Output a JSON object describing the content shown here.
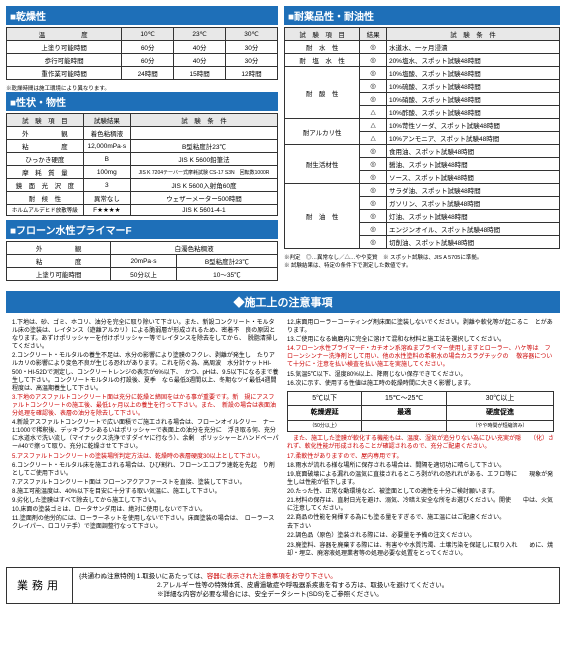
{
  "sections": {
    "s1_title": "■乾燥性",
    "s2_title": "■性状・物性",
    "s3_title": "■フローン水性プライマーF",
    "s4_title": "■耐薬品性・耐油性"
  },
  "table1": {
    "header": [
      "温　　　　度",
      "10℃",
      "23℃",
      "30℃"
    ],
    "rows": [
      [
        "上塗り可能時間",
        "60分",
        "40分",
        "30分"
      ],
      [
        "歩行可能時間",
        "60分",
        "40分",
        "30分"
      ],
      [
        "重作業可能時間",
        "24時間",
        "15時間",
        "12時間"
      ]
    ],
    "foot": "※乾燥時間は施工環境により異なります。"
  },
  "table2": {
    "header": [
      "試　験　項　目",
      "試験結果",
      "試　験　条　件"
    ],
    "rows": [
      [
        "外　　　　　観",
        "着色粘稠液",
        ""
      ],
      [
        "粘　　　　　度",
        "12,000mPa·s",
        "B型粘度計23℃"
      ],
      [
        "ひっかき硬度",
        "B",
        "JIS K 5600鉛筆法"
      ],
      [
        "摩　耗　質　量",
        "100mg",
        "JIS K 7204テーバー式摩耗試験 CS-17 S3N　回転数1000R"
      ],
      [
        "鏡　面　光　沢　度",
        "3",
        "JIS K 5600入射角60度"
      ],
      [
        "耐　候　性",
        "異常なし",
        "ウェザーメーター500時間"
      ],
      [
        "ホルムアルデヒド放散等級",
        "F★★★★",
        "JIS K 5601-4-1"
      ]
    ]
  },
  "table3": {
    "rows": [
      [
        "外　　　　　観",
        "白濁色粘稠液",
        ""
      ],
      [
        "粘　　　　　度",
        "20mPa·s",
        "B型粘度計23℃"
      ],
      [
        "上塗り可能時間",
        "50分以上",
        "10～35℃"
      ]
    ]
  },
  "table4": {
    "header": [
      "試　験　項　目",
      "結果",
      "試　験　条　件"
    ],
    "rows": [
      [
        "耐　水　性",
        "◎",
        "水道水、一ヶ月浸漬"
      ],
      [
        "耐　塩　水　性",
        "◎",
        "20%塩水、スポット試験48時間"
      ],
      [
        "耐　酸　性",
        "◎",
        "10%塩酸、スポット試験48時間"
      ],
      [
        "",
        "◎",
        "10%硫酸、スポット試験48時間"
      ],
      [
        "",
        "◎",
        "10%硝酸、スポット試験48時間"
      ],
      [
        "",
        "△",
        "10%酢酸、スポット試験48時間"
      ],
      [
        "耐アルカリ性",
        "△",
        "10%苛性ソーダ、スポット試験48時間"
      ],
      [
        "",
        "△",
        "10%アンモニア、スポット試験48時間"
      ],
      [
        "耐生活材性",
        "◎",
        "食用油、スポット試験48時間"
      ],
      [
        "",
        "◎",
        "醤油、スポット試験48時間"
      ],
      [
        "",
        "◎",
        "ソース、スポット試験48時間"
      ],
      [
        "耐　油　性",
        "◎",
        "サラダ油、スポット試験48時間"
      ],
      [
        "",
        "◎",
        "ガソリン、スポット試験48時間"
      ],
      [
        "",
        "◎",
        "灯油、スポット試験48時間"
      ],
      [
        "",
        "◎",
        "エンジンオイル、スポット試験48時間"
      ],
      [
        "",
        "◎",
        "切削油、スポット試験48時間"
      ]
    ],
    "foot": "※判定　◎…異常なし／△…やや変質　※ スポット試験は、JIS A 5705に準拠。\n※ 試験結果は、特定の条件下で測定した数値です。"
  },
  "notes_title": "◆施工上の注意事項",
  "notes_left": [
    "1.下地は、砂、ゴミ、ホコリ、油分を完全に取り除いて下さい。また、新設コンクリート・モルタ　ル床の塗装は、レイタンス（遊離アルカリ）による脆弱層が形成されるため、密着不　良の原因となります。あずけポリッシャーを付けポリッシャー等でレイタンスを除去をしてから、　脱脂清掃してください。",
    "2.コンクリート・モルタルの養生不足は、水分の影響により塗膜のフクレ、剥離が発生し　たりアルカリの影響により変色不良が生じる恐れがあります。これを防ぐ為、高周波　水分計ケットHI-500・HI-52Dで測定し、コンクリートレンジの表示が6%以下、　かつ、pHは、9.5以下になるまで養生して下さい。コンクリートモルタルの打設後、夏季　なら最低3週間以上、冬期なツイ最低4週間程度は、高温期養生して下さい。",
    "3.下地のアスファルトコンクリート面は充分に乾燥と締固をはかる事が重要です。新　規にアスファルトコンクリートの施工後、最低1ヶ月以上の養生を行って下さい。また、　新設の場合は表面油分処理を確認後、表層の油分を除去して下さい。",
    "4.新設アスファルトコンクリートで広い面積でご施工される場合は、フローンオイルクリー　ナー1:1000で稀釈後、デッキブラシあるいはポリッシャーで表面上の油分を充分に　浮き取る何、充分に水道水で洗い流し（マイナックス洗浄ですダイヤに行なう）、余剰　ポリッシャーとハンドペーパー#40で擦って取り、充分に乾燥させて下さい。",
    "5.アスファルトコンクリートの塗装場所判定方法は、乾燥時の表層硬度30以上として下さい。",
    "6.コンクリート・モルタル床を施工される場合は、ひび割れ、フローンエコプラ速乾を先起　り剤としてご使用下さい。",
    "7.アスファルトコンクリート面は フローンアクアファーストを直接、塗装して下さい。",
    "8.施工可能温度は、40%以下を目安に十分する取い気温に、施工して下さい。",
    "9.劣化した塗膜はすべて除去してから施工して下さい。",
    "10.床面の塗装ゴミは、ロータサンダ用は、絶対に使用しないで下さい。",
    "11.塗面剤の他労的には、ローラーネットを使用しないで下さい。床面塗装の場合は、　ローラースクレイパー、ロコリテ手）で塗面調整行なって下さい。"
  ],
  "notes_right": [
    "12.床面用ローラーコーティング剤床面に塗装しないでください。剥離や軟化等が起こるこ　とがあります。",
    "13.ご使用になる歯磨内に完全に溶けて混和な材料と施工法を選択してください。",
    "14.フローン水性プライマーF・カチオン系溶ぬまプライマー使用しますとローラー、ハケ等は　フローンシンナー洗浄剤として用い、他の水性塗料の希釈水の場合カスラグチックの　 敬容器について十分に・注意を払い検査を払い施工を実施してください。",
    "15.気温5℃以下、湿度80%以上、降雨じない保存できてください。",
    "16.次に示す、使用する性値は施工時の乾燥時間に大きく影響します。",
    "",
    "　また、施工した塗膜が軟化する機能もは、温度、湿気が追分りない為にひい充実が隠　　（化）されず、軟化性能が形成されることが確認されるので、充分ご配慮ください。",
    "17.柔軟性がありますので、屋内専用です。",
    "18.雨水が流れる様な場所に保存される場合は、間隔を適切功に晴らして下さい。",
    "19.底面破壊による漏れの温気に直接されるところ剥がれの恐れれがある、エフロ等に　　現象が発生しは性能が低下します。",
    "20.たった性、正常な動環境など、被塗面としての適性を十分ご検討願います。",
    "21.材料の保存は、直射日光を避け、溺気、冷暗え安全な所をお選びください。開使　　中は、火気に注意してください。",
    "22.商品の性能を発揮する為にも塗る量をすぎるで、施工温にはご配慮ください。",
    "   去下さい",
    "22.調色品（原色）塗装される際には、必要量を予備の注文ください。",
    "23.廃塗料、容器を廃棄する際には、有害やや水質汚濁、土壌汚染を保証しに取り入れ　　めに、焼却・埋立、廃溶液処理業者等の処理必要な処置をとってください。"
  ],
  "temp_table": {
    "r1": [
      "5℃以下",
      "15℃～25℃",
      "30℃以上"
    ],
    "r2": [
      "乾燥遅延",
      "最適",
      "硬度促進"
    ],
    "r3": [
      "（50分以上）",
      "",
      "（やや時間が短縮済み）"
    ]
  },
  "footer": {
    "label": "業務用",
    "line0": "{共通わぬ注意特例] 1.取扱いにあたっては、",
    "line0r": "容器に表示された注意事項をお守り下さい。",
    "line1": "2.アレルギー性等の特殊体質、皮膚過敏症や呼吸器系疾患を有する方は、取扱いを避けてください。",
    "line2": "※詳細な内容が必要な場合には、安全データシート(SDS)をご参照ください。"
  },
  "colors": {
    "header_bg": "#1e6fb8"
  }
}
